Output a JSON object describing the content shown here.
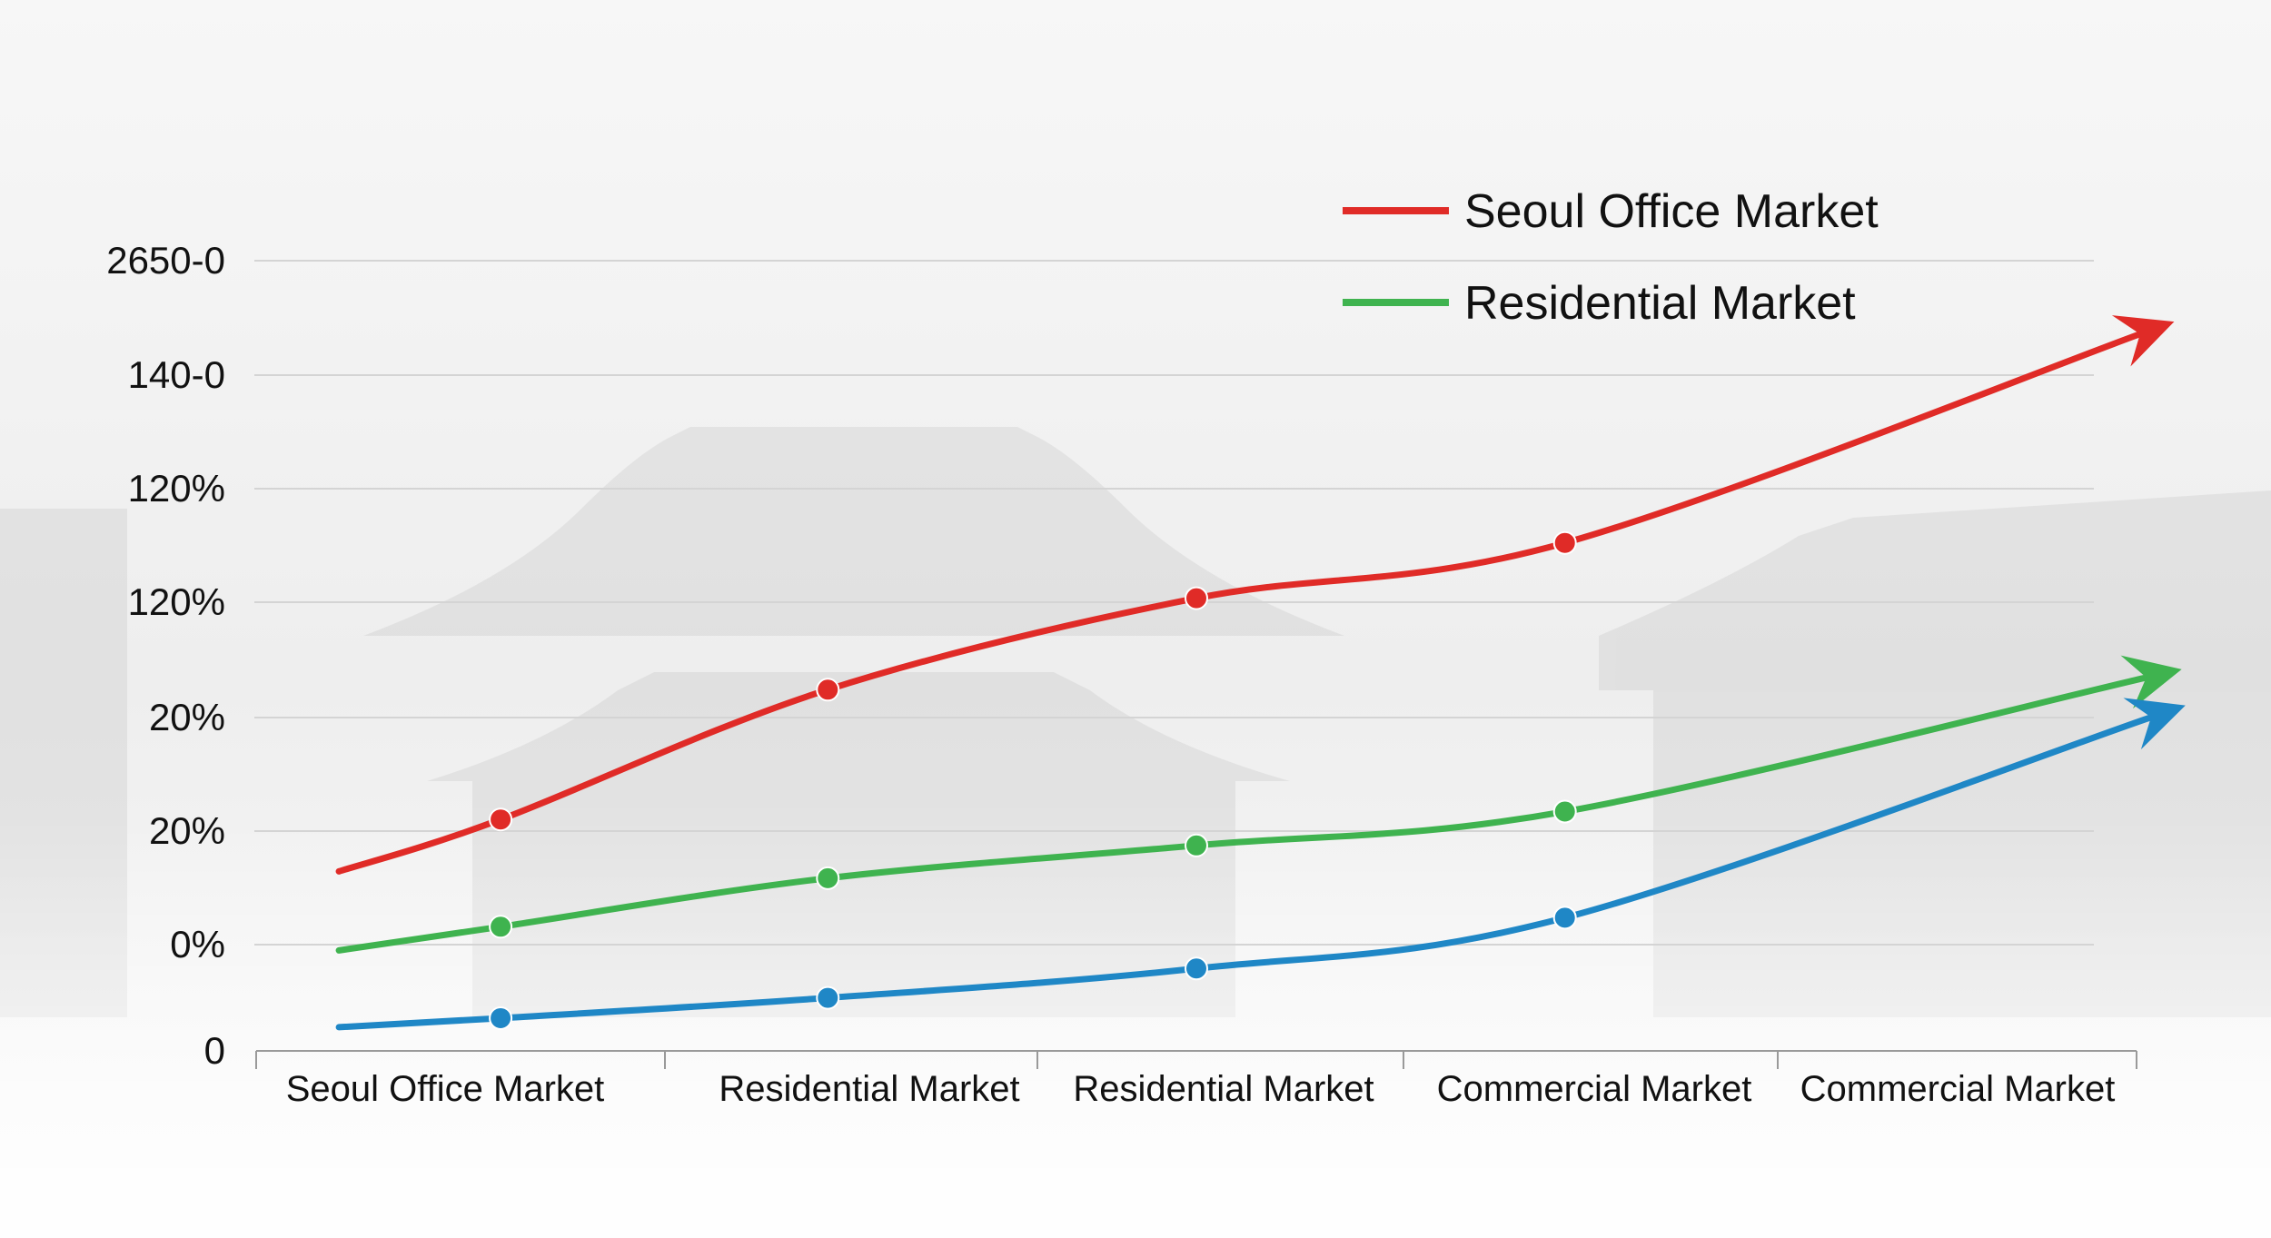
{
  "chart_data": {
    "type": "line",
    "title": "",
    "xlabel": "",
    "ylabel": "",
    "y_tick_labels": [
      "0",
      "0%",
      "20%",
      "20%",
      "120%",
      "120%",
      "140-0",
      "2650-0"
    ],
    "categories": [
      "Seoul Office Market",
      "Residential Market",
      "Residential Market",
      "Commercial Market",
      "Commercial Market"
    ],
    "x": [
      0.45,
      1.5,
      2.5,
      3.5,
      4.5
    ],
    "xlim": [
      0,
      5
    ],
    "ylim": [
      0,
      7
    ],
    "grid": true,
    "legend_position": "top-right",
    "series": [
      {
        "name": "Seoul Office Market",
        "color": "#e02b27",
        "x": [
          0.22,
          0.65,
          1.52,
          2.5,
          3.48,
          5.1
        ],
        "values": [
          1.59,
          2.05,
          3.2,
          4.01,
          4.5,
          6.46
        ],
        "markers": [
          false,
          true,
          true,
          true,
          true,
          false
        ],
        "arrow_end": true
      },
      {
        "name": "Residential Market",
        "color": "#3fb34f",
        "x": [
          0.22,
          0.65,
          1.52,
          2.5,
          3.48,
          5.12
        ],
        "values": [
          0.89,
          1.1,
          1.53,
          1.82,
          2.12,
          3.38
        ],
        "markers": [
          false,
          true,
          true,
          true,
          true,
          false
        ],
        "arrow_end": true
      },
      {
        "name": "",
        "color": "#1f87c6",
        "x": [
          0.22,
          0.65,
          1.52,
          2.5,
          3.48,
          5.13
        ],
        "values": [
          0.21,
          0.29,
          0.47,
          0.73,
          1.18,
          3.06
        ],
        "markers": [
          false,
          true,
          true,
          true,
          true,
          false
        ],
        "arrow_end": true
      }
    ],
    "legend_entries": [
      "Seoul Office Market",
      "Residential Market"
    ]
  }
}
